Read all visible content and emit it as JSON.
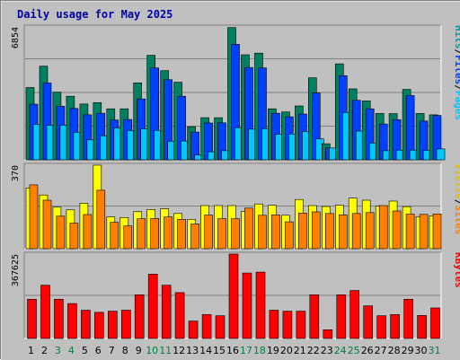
{
  "chart_data": {
    "type": "bar",
    "title": "Daily usage for May 2025",
    "categories": [
      "1",
      "2",
      "3",
      "4",
      "5",
      "6",
      "7",
      "8",
      "9",
      "10",
      "11",
      "12",
      "13",
      "14",
      "15",
      "16",
      "17",
      "18",
      "19",
      "20",
      "21",
      "22",
      "23",
      "24",
      "25",
      "26",
      "27",
      "28",
      "29",
      "30",
      "31"
    ],
    "weekend_days": [
      3,
      4,
      10,
      11,
      17,
      18,
      24,
      25,
      31
    ],
    "panels": [
      {
        "id": "hits",
        "max_label": "6854",
        "ylim": [
          0,
          6854
        ],
        "legend": [
          {
            "text": "Hits",
            "color": "#00a0a0"
          },
          {
            "text": "/",
            "color": "#000000"
          },
          {
            "text": "Files",
            "color": "#0040ff"
          },
          {
            "text": "/",
            "color": "#000000"
          },
          {
            "text": "Pages",
            "color": "#00c8ff"
          }
        ],
        "series": [
          {
            "name": "Hits",
            "color": "#008060",
            "values": [
              3730,
              4830,
              3490,
              3280,
              2880,
              2950,
              2630,
              2630,
              3970,
              5390,
              4600,
              4000,
              1710,
              2170,
              2170,
              6820,
              5420,
              5500,
              2630,
              2470,
              2780,
              4230,
              830,
              4950,
              3660,
              3040,
              2390,
              2380,
              3630,
              2390,
              2320
            ]
          },
          {
            "name": "Files",
            "color": "#0040ff",
            "values": [
              2870,
              3960,
              2760,
              2650,
              2320,
              2400,
              2050,
              2080,
              3140,
              4740,
              4130,
              3280,
              1430,
              1900,
              1910,
              5960,
              4760,
              4740,
              2400,
              2220,
              2360,
              3450,
              610,
              4340,
              3070,
              2630,
              1850,
              2070,
              3310,
              2000,
              2290
            ]
          },
          {
            "name": "Pages",
            "color": "#00c8ff",
            "values": [
              1830,
              1780,
              1780,
              1420,
              1030,
              1240,
              1640,
              1510,
              1600,
              1520,
              960,
              970,
              250,
              410,
              470,
              1660,
              1580,
              1610,
              1320,
              1330,
              1460,
              1080,
              610,
              2440,
              1480,
              870,
              470,
              500,
              500,
              490,
              560
            ]
          }
        ]
      },
      {
        "id": "visits",
        "max_label": "370",
        "ylim": [
          0,
          370
        ],
        "legend": [
          {
            "text": "Visits",
            "color": "#e0c000"
          },
          {
            "text": "/",
            "color": "#000000"
          },
          {
            "text": "Sites",
            "color": "#ff8000"
          }
        ],
        "series": [
          {
            "name": "Visits",
            "color": "#ffff00",
            "values": [
              269,
              238,
              184,
              172,
              201,
              370,
              141,
              138,
              164,
              174,
              177,
              156,
              130,
              191,
              191,
              191,
              165,
              198,
              192,
              148,
              218,
              191,
              187,
              193,
              224,
              215,
              188,
              211,
              186,
              142,
              146
            ]
          },
          {
            "name": "Sites",
            "color": "#ff8000",
            "values": [
              283,
              215,
              144,
              113,
              151,
              259,
              117,
              101,
              133,
              134,
              141,
              130,
              110,
              149,
              133,
              133,
              180,
              148,
              150,
              119,
              158,
              163,
              156,
              150,
              156,
              160,
              191,
              167,
              153,
              152,
              154
            ]
          }
        ]
      },
      {
        "id": "kbytes",
        "max_label": "367625",
        "ylim": [
          0,
          367625
        ],
        "legend": [
          {
            "text": "KBytes",
            "color": "#ff0000"
          }
        ],
        "series": [
          {
            "name": "KBytes",
            "color": "#ff0000",
            "values": [
              171000,
              232000,
              171000,
              152000,
              123000,
              114000,
              119000,
              123000,
              190000,
              280000,
              232000,
              200000,
              76000,
              104000,
              99000,
              367625,
              285000,
              289000,
              123000,
              119000,
              119000,
              190000,
              38000,
              190000,
              209000,
              142000,
              99000,
              104000,
              171000,
              100000,
              133000
            ]
          }
        ]
      }
    ]
  }
}
